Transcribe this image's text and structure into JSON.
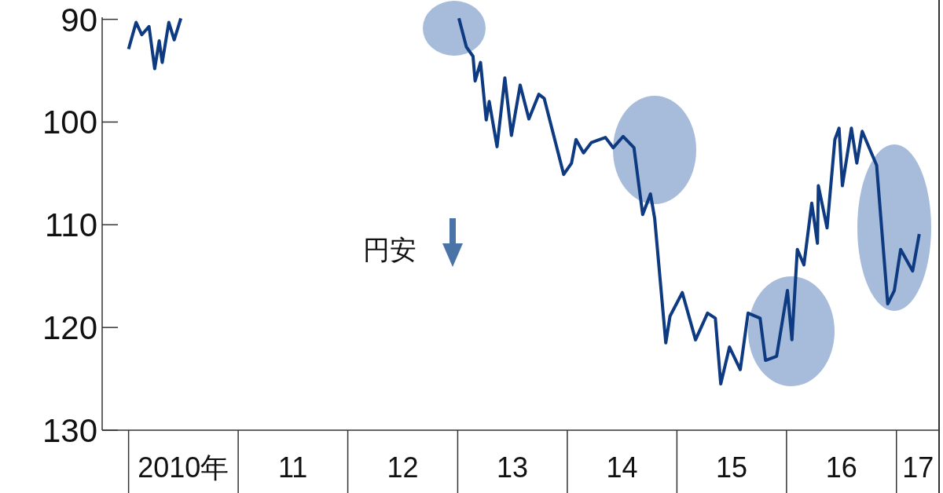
{
  "chart_data": {
    "type": "line",
    "color": "#0d3a80",
    "line_style": "solid",
    "x": [
      "2010-01-01",
      "2010-01-26",
      "2010-02-14",
      "2010-03-10",
      "2010-03-29",
      "2010-04-13",
      "2010-04-23",
      "2010-05-15",
      "2010-06-02",
      "2010-06-24",
      "2011-07-02",
      "2013-01-05",
      "2013-01-30",
      "2013-02-21",
      "2013-02-28",
      "2013-03-18",
      "2013-04-06",
      "2013-04-16",
      "2013-05-12",
      "2013-06-07",
      "2013-06-29",
      "2013-07-28",
      "2013-08-26",
      "2013-09-28",
      "2013-10-16",
      "2013-12-20",
      "2014-01-15",
      "2014-01-30",
      "2014-02-24",
      "2014-03-22",
      "2014-05-08",
      "2014-06-03",
      "2014-07-06",
      "2014-08-11",
      "2014-09-09",
      "2014-10-05",
      "2014-10-19",
      "2014-11-25",
      "2014-12-09",
      "2015-01-19",
      "2015-03-04",
      "2015-04-13",
      "2015-05-09",
      "2015-05-27",
      "2015-06-25",
      "2015-07-31",
      "2015-08-26",
      "2015-10-05",
      "2015-10-23",
      "2015-11-29",
      "2016-01-04",
      "2016-01-19",
      "2016-02-06",
      "2016-02-28",
      "2016-03-25",
      "2016-04-13",
      "2016-04-16",
      "2016-05-15",
      "2016-06-10",
      "2016-06-24",
      "2016-07-05",
      "2016-08-04",
      "2016-08-22",
      "2016-09-09",
      "2016-10-27",
      "2016-12-03",
      "2016-12-25",
      "2017-01-15",
      "2017-02-24",
      "2017-03-18"
    ],
    "values": [
      92.9,
      90.3,
      91.5,
      90.7,
      94.8,
      92.1,
      94.2,
      90.3,
      92.0,
      89.9,
      null,
      89.9,
      92.7,
      93.6,
      96.0,
      94.2,
      99.8,
      98.0,
      102.4,
      95.7,
      101.3,
      96.4,
      99.7,
      97.3,
      97.7,
      105.1,
      104.0,
      101.7,
      103.0,
      102.0,
      101.5,
      102.5,
      101.4,
      102.5,
      109.0,
      107.0,
      109.4,
      121.5,
      118.9,
      116.6,
      121.2,
      118.6,
      119.1,
      125.5,
      121.9,
      124.1,
      118.6,
      119.1,
      123.2,
      122.8,
      116.4,
      121.2,
      112.4,
      113.9,
      107.9,
      111.8,
      106.2,
      110.3,
      101.7,
      100.6,
      106.2,
      100.6,
      104.0,
      100.9,
      104.2,
      117.7,
      116.4,
      112.4,
      114.5,
      110.9
    ],
    "xlim": [
      "2009-10-05",
      "2017-05-23"
    ],
    "xticks": [
      {
        "value": "2010-07-02",
        "label": "2010年"
      },
      {
        "value": "2011-07-02",
        "label": "11"
      },
      {
        "value": "2012-07-02",
        "label": "12"
      },
      {
        "value": "2013-07-02",
        "label": "13"
      },
      {
        "value": "2014-07-02",
        "label": "14"
      },
      {
        "value": "2015-07-02",
        "label": "15"
      },
      {
        "value": "2016-07-02",
        "label": "16"
      },
      {
        "value": "2017-03-14",
        "label": "17"
      }
    ],
    "ylim": [
      130,
      89.8
    ],
    "yticks": [
      90,
      100,
      110,
      120,
      130
    ],
    "annotations": [
      "円安"
    ]
  }
}
